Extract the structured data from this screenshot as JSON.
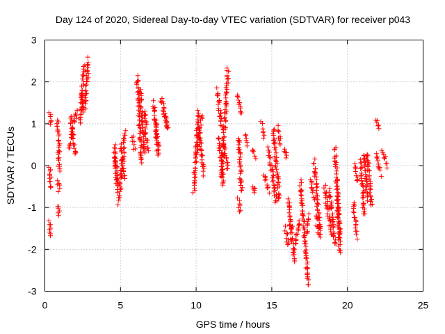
{
  "chart_data": {
    "type": "scatter",
    "title": "Day 124 of 2020, Sidereal Day-to-day VTEC variation (SDTVAR) for receiver p043",
    "xlabel": "GPS time / hours",
    "ylabel": "SDTVAR / TECUs",
    "xlim": [
      0,
      25
    ],
    "ylim": [
      -3,
      3
    ],
    "xticks": [
      "0",
      "5",
      "10",
      "15",
      "20",
      "25"
    ],
    "yticks": [
      "-3",
      "-2",
      "-1",
      "0",
      "1",
      "2",
      "3"
    ],
    "grid": true,
    "marker": "plus",
    "color": "#ff0000",
    "tracks": [
      {
        "x": [
          0.3,
          0.4
        ],
        "y": [
          1.25,
          0.95
        ]
      },
      {
        "x": [
          0.3,
          0.4
        ],
        "y": [
          -0.05,
          -0.55
        ]
      },
      {
        "x": [
          0.3,
          0.4
        ],
        "y": [
          -1.35,
          -1.7
        ]
      },
      {
        "x": [
          0.85,
          0.95
        ],
        "y": [
          1.1,
          0.3
        ]
      },
      {
        "x": [
          0.85,
          0.95
        ],
        "y": [
          0.3,
          -0.1
        ]
      },
      {
        "x": [
          0.85,
          0.95
        ],
        "y": [
          -0.35,
          -0.6
        ]
      },
      {
        "x": [
          0.85,
          0.95
        ],
        "y": [
          -0.95,
          -1.2
        ]
      },
      {
        "x": [
          1.6,
          2.1
        ],
        "y": [
          0.4,
          1.35
        ]
      },
      {
        "x": [
          1.7,
          2.0
        ],
        "y": [
          1.2,
          0.25
        ]
      },
      {
        "x": [
          2.3,
          2.6
        ],
        "y": [
          1.0,
          2.4
        ]
      },
      {
        "x": [
          2.4,
          2.6
        ],
        "y": [
          1.7,
          1.3
        ]
      },
      {
        "x": [
          2.65,
          2.9
        ],
        "y": [
          1.4,
          2.55
        ]
      },
      {
        "x": [
          4.6,
          4.8
        ],
        "y": [
          0.5,
          -0.6
        ]
      },
      {
        "x": [
          4.6,
          4.8
        ],
        "y": [
          0.2,
          -0.35
        ]
      },
      {
        "x": [
          4.9,
          5.3
        ],
        "y": [
          -0.9,
          0.8
        ]
      },
      {
        "x": [
          5.0,
          5.3
        ],
        "y": [
          0.5,
          -0.3
        ]
      },
      {
        "x": [
          5.8,
          5.9
        ],
        "y": [
          0.7,
          0.4
        ]
      },
      {
        "x": [
          6.1,
          6.4
        ],
        "y": [
          2.1,
          0.05
        ]
      },
      {
        "x": [
          6.3,
          6.6
        ],
        "y": [
          1.8,
          0.3
        ]
      },
      {
        "x": [
          6.6,
          6.8
        ],
        "y": [
          1.3,
          0.4
        ]
      },
      {
        "x": [
          7.2,
          7.5
        ],
        "y": [
          1.5,
          0.2
        ]
      },
      {
        "x": [
          7.3,
          7.5
        ],
        "y": [
          1.1,
          0.5
        ]
      },
      {
        "x": [
          7.7,
          8.1
        ],
        "y": [
          1.6,
          0.85
        ]
      },
      {
        "x": [
          7.9,
          8.1
        ],
        "y": [
          1.3,
          0.9
        ]
      },
      {
        "x": [
          9.85,
          10.15
        ],
        "y": [
          -0.6,
          1.3
        ]
      },
      {
        "x": [
          10.0,
          10.4
        ],
        "y": [
          0.3,
          1.2
        ]
      },
      {
        "x": [
          10.2,
          10.5
        ],
        "y": [
          0.8,
          -0.2
        ]
      },
      {
        "x": [
          11.4,
          11.7
        ],
        "y": [
          1.8,
          0.9
        ]
      },
      {
        "x": [
          11.5,
          11.8
        ],
        "y": [
          0.7,
          -0.5
        ]
      },
      {
        "x": [
          11.7,
          12.1
        ],
        "y": [
          -0.2,
          2.3
        ]
      },
      {
        "x": [
          11.8,
          12.1
        ],
        "y": [
          0.6,
          -0.1
        ]
      },
      {
        "x": [
          12.7,
          13.0
        ],
        "y": [
          1.7,
          1.2
        ]
      },
      {
        "x": [
          12.8,
          12.9
        ],
        "y": [
          -0.8,
          -1.1
        ]
      },
      {
        "x": [
          12.8,
          13.0
        ],
        "y": [
          0.7,
          -0.6
        ]
      },
      {
        "x": [
          13.3,
          13.4
        ],
        "y": [
          0.7,
          0.5
        ]
      },
      {
        "x": [
          13.7,
          13.9
        ],
        "y": [
          0.4,
          0.2
        ]
      },
      {
        "x": [
          13.8,
          13.9
        ],
        "y": [
          -0.5,
          -0.6
        ]
      },
      {
        "x": [
          14.3,
          14.5
        ],
        "y": [
          1.0,
          0.7
        ]
      },
      {
        "x": [
          14.5,
          14.8
        ],
        "y": [
          -0.2,
          -0.6
        ]
      },
      {
        "x": [
          14.8,
          15.3
        ],
        "y": [
          0.4,
          -0.9
        ]
      },
      {
        "x": [
          15.1,
          15.5
        ],
        "y": [
          0.9,
          -0.8
        ]
      },
      {
        "x": [
          15.4,
          15.6
        ],
        "y": [
          0.9,
          0.5
        ]
      },
      {
        "x": [
          15.8,
          16.0
        ],
        "y": [
          0.4,
          0.2
        ]
      },
      {
        "x": [
          15.9,
          16.1
        ],
        "y": [
          -1.5,
          -1.9
        ]
      },
      {
        "x": [
          16.1,
          16.3
        ],
        "y": [
          -0.8,
          -1.5
        ]
      },
      {
        "x": [
          16.2,
          16.5
        ],
        "y": [
          -1.4,
          -2.3
        ]
      },
      {
        "x": [
          16.5,
          16.8
        ],
        "y": [
          -2.0,
          -1.3
        ]
      },
      {
        "x": [
          16.9,
          17.4
        ],
        "y": [
          -0.4,
          -2.85
        ]
      },
      {
        "x": [
          17.3,
          17.5
        ],
        "y": [
          -1.6,
          -1.2
        ]
      },
      {
        "x": [
          17.6,
          17.8
        ],
        "y": [
          -0.3,
          -0.8
        ]
      },
      {
        "x": [
          17.8,
          18.2
        ],
        "y": [
          0.1,
          -1.7
        ]
      },
      {
        "x": [
          17.9,
          18.1
        ],
        "y": [
          -1.2,
          -1.6
        ]
      },
      {
        "x": [
          18.5,
          18.9
        ],
        "y": [
          -0.5,
          -1.6
        ]
      },
      {
        "x": [
          18.8,
          19.2
        ],
        "y": [
          -0.6,
          -1.9
        ]
      },
      {
        "x": [
          19.2,
          19.5
        ],
        "y": [
          0.4,
          -2.1
        ]
      },
      {
        "x": [
          19.3,
          19.5
        ],
        "y": [
          -0.6,
          -1.6
        ]
      },
      {
        "x": [
          20.4,
          20.6
        ],
        "y": [
          -0.9,
          -1.7
        ]
      },
      {
        "x": [
          20.5,
          20.7
        ],
        "y": [
          0.0,
          -0.4
        ]
      },
      {
        "x": [
          20.9,
          21.1
        ],
        "y": [
          0.1,
          -1.2
        ]
      },
      {
        "x": [
          21.1,
          21.3
        ],
        "y": [
          0.3,
          -0.8
        ]
      },
      {
        "x": [
          21.3,
          21.6
        ],
        "y": [
          0.3,
          -1.0
        ]
      },
      {
        "x": [
          21.9,
          22.1
        ],
        "y": [
          1.1,
          0.9
        ]
      },
      {
        "x": [
          21.9,
          22.2
        ],
        "y": [
          0.3,
          -0.2
        ]
      },
      {
        "x": [
          22.3,
          22.6
        ],
        "y": [
          0.35,
          0.0
        ]
      }
    ]
  }
}
